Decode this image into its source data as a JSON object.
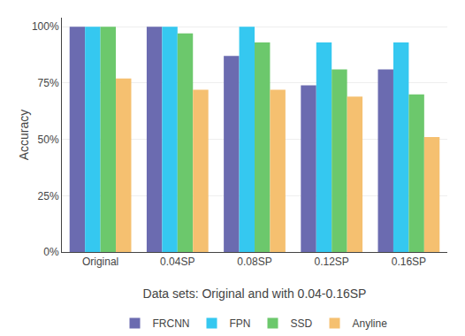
{
  "chart_data": {
    "type": "bar",
    "categories": [
      "Original",
      "0.04SP",
      "0.08SP",
      "0.12SP",
      "0.16SP"
    ],
    "series": [
      {
        "name": "FRCNN",
        "color": "#6b6bb0",
        "values": [
          1.0,
          1.0,
          0.87,
          0.74,
          0.81
        ]
      },
      {
        "name": "FPN",
        "color": "#35c8f0",
        "values": [
          1.0,
          1.0,
          1.0,
          0.93,
          0.93
        ]
      },
      {
        "name": "SSD",
        "color": "#6cc86c",
        "values": [
          1.0,
          0.97,
          0.93,
          0.81,
          0.7
        ]
      },
      {
        "name": "Anyline",
        "color": "#f5c070",
        "values": [
          0.77,
          0.72,
          0.72,
          0.69,
          0.51
        ]
      }
    ],
    "xlabel": "Data sets: Original and with 0.04-0.16SP",
    "ylabel": "Accuracy",
    "ylim": [
      0,
      1.04
    ],
    "yticks": [
      {
        "value": 0,
        "label": "0%"
      },
      {
        "value": 0.25,
        "label": "25%"
      },
      {
        "value": 0.5,
        "label": "50%"
      },
      {
        "value": 0.75,
        "label": "75%"
      },
      {
        "value": 1.0,
        "label": "100%"
      }
    ],
    "grid": true,
    "legend": "lower center"
  }
}
